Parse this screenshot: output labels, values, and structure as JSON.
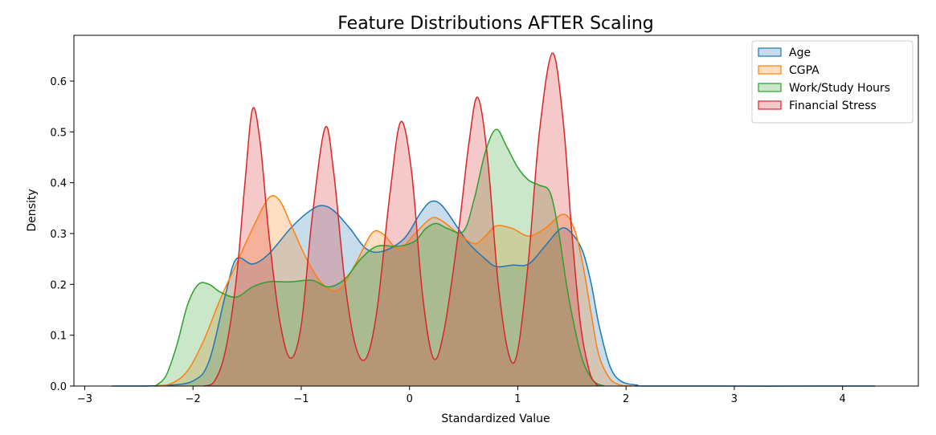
{
  "chart_data": {
    "type": "area",
    "title": "Feature Distributions AFTER Scaling",
    "xlabel": "Standardized Value",
    "ylabel": "Density",
    "xlim": [
      -3.1,
      4.7
    ],
    "ylim": [
      0.0,
      0.69
    ],
    "xticks": [
      -3,
      -2,
      -1,
      0,
      1,
      2,
      3,
      4
    ],
    "yticks": [
      0.0,
      0.1,
      0.2,
      0.3,
      0.4,
      0.5,
      0.6
    ],
    "grid": false,
    "legend_position": "top-right",
    "series": [
      {
        "name": "Age",
        "color": "#1f77b4",
        "points": [
          [
            -2.75,
            0.0
          ],
          [
            -2.3,
            0.001
          ],
          [
            -2.0,
            0.01
          ],
          [
            -1.85,
            0.05
          ],
          [
            -1.7,
            0.18
          ],
          [
            -1.6,
            0.25
          ],
          [
            -1.45,
            0.24
          ],
          [
            -1.3,
            0.26
          ],
          [
            -1.1,
            0.31
          ],
          [
            -0.95,
            0.34
          ],
          [
            -0.82,
            0.355
          ],
          [
            -0.7,
            0.345
          ],
          [
            -0.55,
            0.31
          ],
          [
            -0.4,
            0.27
          ],
          [
            -0.25,
            0.265
          ],
          [
            -0.05,
            0.29
          ],
          [
            0.1,
            0.34
          ],
          [
            0.2,
            0.363
          ],
          [
            0.3,
            0.355
          ],
          [
            0.45,
            0.31
          ],
          [
            0.55,
            0.28
          ],
          [
            0.7,
            0.25
          ],
          [
            0.8,
            0.235
          ],
          [
            0.95,
            0.238
          ],
          [
            1.1,
            0.24
          ],
          [
            1.25,
            0.275
          ],
          [
            1.4,
            0.31
          ],
          [
            1.5,
            0.3
          ],
          [
            1.6,
            0.265
          ],
          [
            1.68,
            0.2
          ],
          [
            1.75,
            0.12
          ],
          [
            1.85,
            0.04
          ],
          [
            1.95,
            0.01
          ],
          [
            2.1,
            0.002
          ],
          [
            2.3,
            0.0
          ],
          [
            4.3,
            0.0
          ]
        ]
      },
      {
        "name": "CGPA",
        "color": "#ff7f0e",
        "points": [
          [
            -2.35,
            0.0
          ],
          [
            -2.2,
            0.005
          ],
          [
            -2.05,
            0.03
          ],
          [
            -1.9,
            0.09
          ],
          [
            -1.75,
            0.17
          ],
          [
            -1.6,
            0.24
          ],
          [
            -1.45,
            0.31
          ],
          [
            -1.3,
            0.37
          ],
          [
            -1.2,
            0.365
          ],
          [
            -1.1,
            0.32
          ],
          [
            -0.95,
            0.25
          ],
          [
            -0.8,
            0.2
          ],
          [
            -0.65,
            0.19
          ],
          [
            -0.5,
            0.24
          ],
          [
            -0.35,
            0.3
          ],
          [
            -0.25,
            0.3
          ],
          [
            -0.1,
            0.27
          ],
          [
            0.05,
            0.3
          ],
          [
            0.2,
            0.33
          ],
          [
            0.3,
            0.325
          ],
          [
            0.45,
            0.3
          ],
          [
            0.6,
            0.28
          ],
          [
            0.7,
            0.295
          ],
          [
            0.8,
            0.315
          ],
          [
            0.95,
            0.31
          ],
          [
            1.1,
            0.295
          ],
          [
            1.25,
            0.31
          ],
          [
            1.42,
            0.338
          ],
          [
            1.52,
            0.31
          ],
          [
            1.6,
            0.24
          ],
          [
            1.68,
            0.14
          ],
          [
            1.75,
            0.06
          ],
          [
            1.85,
            0.015
          ],
          [
            1.95,
            0.002
          ],
          [
            2.05,
            0.0
          ]
        ]
      },
      {
        "name": "Work/Study Hours",
        "color": "#2ca02c",
        "points": [
          [
            -2.35,
            0.0
          ],
          [
            -2.25,
            0.02
          ],
          [
            -2.15,
            0.08
          ],
          [
            -2.05,
            0.16
          ],
          [
            -1.95,
            0.2
          ],
          [
            -1.85,
            0.2
          ],
          [
            -1.75,
            0.185
          ],
          [
            -1.6,
            0.175
          ],
          [
            -1.45,
            0.195
          ],
          [
            -1.3,
            0.205
          ],
          [
            -1.1,
            0.205
          ],
          [
            -0.9,
            0.208
          ],
          [
            -0.75,
            0.195
          ],
          [
            -0.6,
            0.21
          ],
          [
            -0.45,
            0.25
          ],
          [
            -0.3,
            0.275
          ],
          [
            -0.1,
            0.275
          ],
          [
            0.05,
            0.285
          ],
          [
            0.15,
            0.31
          ],
          [
            0.25,
            0.32
          ],
          [
            0.35,
            0.31
          ],
          [
            0.5,
            0.305
          ],
          [
            0.6,
            0.37
          ],
          [
            0.7,
            0.46
          ],
          [
            0.8,
            0.505
          ],
          [
            0.9,
            0.47
          ],
          [
            1.0,
            0.43
          ],
          [
            1.1,
            0.405
          ],
          [
            1.2,
            0.395
          ],
          [
            1.3,
            0.38
          ],
          [
            1.38,
            0.3
          ],
          [
            1.45,
            0.2
          ],
          [
            1.52,
            0.12
          ],
          [
            1.6,
            0.05
          ],
          [
            1.7,
            0.01
          ],
          [
            1.8,
            0.0
          ]
        ]
      },
      {
        "name": "Financial Stress",
        "color": "#d62728",
        "points": [
          [
            -1.9,
            0.0
          ],
          [
            -1.8,
            0.01
          ],
          [
            -1.7,
            0.07
          ],
          [
            -1.6,
            0.21
          ],
          [
            -1.52,
            0.4
          ],
          [
            -1.45,
            0.545
          ],
          [
            -1.38,
            0.48
          ],
          [
            -1.3,
            0.3
          ],
          [
            -1.2,
            0.13
          ],
          [
            -1.1,
            0.055
          ],
          [
            -1.0,
            0.12
          ],
          [
            -0.9,
            0.33
          ],
          [
            -0.78,
            0.508
          ],
          [
            -0.7,
            0.42
          ],
          [
            -0.6,
            0.21
          ],
          [
            -0.5,
            0.08
          ],
          [
            -0.4,
            0.055
          ],
          [
            -0.3,
            0.15
          ],
          [
            -0.18,
            0.38
          ],
          [
            -0.08,
            0.52
          ],
          [
            0.02,
            0.42
          ],
          [
            0.12,
            0.18
          ],
          [
            0.22,
            0.055
          ],
          [
            0.32,
            0.11
          ],
          [
            0.45,
            0.3
          ],
          [
            0.55,
            0.48
          ],
          [
            0.63,
            0.568
          ],
          [
            0.72,
            0.45
          ],
          [
            0.82,
            0.2
          ],
          [
            0.92,
            0.06
          ],
          [
            1.0,
            0.07
          ],
          [
            1.1,
            0.25
          ],
          [
            1.2,
            0.5
          ],
          [
            1.32,
            0.655
          ],
          [
            1.42,
            0.52
          ],
          [
            1.5,
            0.3
          ],
          [
            1.58,
            0.12
          ],
          [
            1.66,
            0.03
          ],
          [
            1.72,
            0.005
          ],
          [
            1.75,
            0.0
          ]
        ]
      }
    ]
  }
}
